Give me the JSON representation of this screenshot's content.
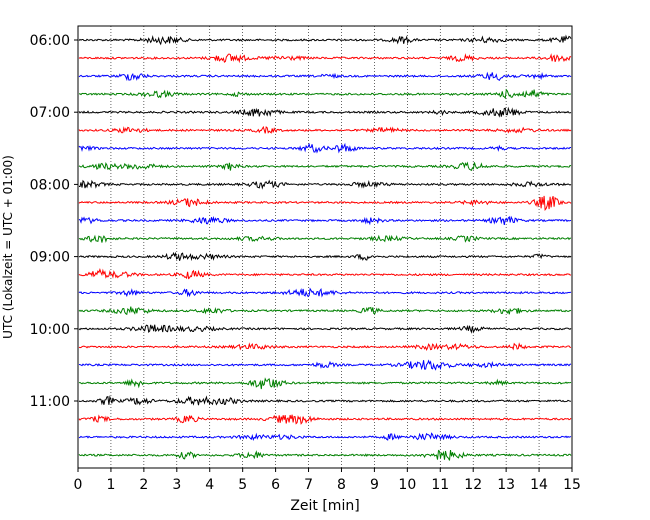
{
  "chart_data": {
    "type": "line",
    "subtype": "helicorder",
    "title": "",
    "xlabel": "Zeit  [min]",
    "ylabel": "UTC (Lokalzeit = UTC + 01:00)",
    "xlim": [
      0,
      15
    ],
    "x_ticks": [
      "0",
      "1",
      "2",
      "3",
      "4",
      "5",
      "6",
      "7",
      "8",
      "9",
      "10",
      "11",
      "12",
      "13",
      "14",
      "15"
    ],
    "y_ticks": [
      {
        "label": "06:00",
        "row": 0
      },
      {
        "label": "07:00",
        "row": 4
      },
      {
        "label": "08:00",
        "row": 8
      },
      {
        "label": "09:00",
        "row": 12
      },
      {
        "label": "10:00",
        "row": 16
      },
      {
        "label": "11:00",
        "row": 20
      }
    ],
    "vertical_grid": true,
    "grid_style": "dotted",
    "row_interval_minutes": 15,
    "row_colors": [
      "#000000",
      "#ff0000",
      "#0000ff",
      "#008000"
    ],
    "series": [
      {
        "start": "06:00",
        "color": "#000000"
      },
      {
        "start": "06:15",
        "color": "#ff0000"
      },
      {
        "start": "06:30",
        "color": "#0000ff"
      },
      {
        "start": "06:45",
        "color": "#008000"
      },
      {
        "start": "07:00",
        "color": "#000000"
      },
      {
        "start": "07:15",
        "color": "#ff0000"
      },
      {
        "start": "07:30",
        "color": "#0000ff"
      },
      {
        "start": "07:45",
        "color": "#008000"
      },
      {
        "start": "08:00",
        "color": "#000000"
      },
      {
        "start": "08:15",
        "color": "#ff0000"
      },
      {
        "start": "08:30",
        "color": "#0000ff"
      },
      {
        "start": "08:45",
        "color": "#008000"
      },
      {
        "start": "09:00",
        "color": "#000000"
      },
      {
        "start": "09:15",
        "color": "#ff0000"
      },
      {
        "start": "09:30",
        "color": "#0000ff"
      },
      {
        "start": "09:45",
        "color": "#008000"
      },
      {
        "start": "10:00",
        "color": "#000000"
      },
      {
        "start": "10:15",
        "color": "#ff0000"
      },
      {
        "start": "10:30",
        "color": "#0000ff"
      },
      {
        "start": "10:45",
        "color": "#008000"
      },
      {
        "start": "11:00",
        "color": "#000000"
      },
      {
        "start": "11:15",
        "color": "#ff0000"
      },
      {
        "start": "11:30",
        "color": "#0000ff"
      },
      {
        "start": "11:45",
        "color": "#008000"
      }
    ]
  }
}
